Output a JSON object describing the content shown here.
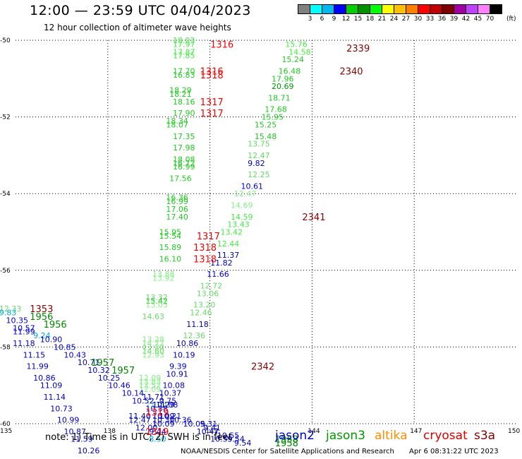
{
  "header": {
    "title": "12:00 — 23:59 UTC 04/04/2023",
    "subtitle": "12 hour collection of altimeter wave heights"
  },
  "legend": {
    "colors": [
      "#808080",
      "#00ffff",
      "#00b8f0",
      "#0000ff",
      "#00d000",
      "#009000",
      "#00ff00",
      "#ffff00",
      "#ffc000",
      "#ff8000",
      "#ff0000",
      "#c00000",
      "#800000",
      "#a000a0",
      "#c040ff",
      "#ff80ff",
      "#000000"
    ],
    "labels": [
      "3",
      "6",
      "9",
      "12",
      "15",
      "18",
      "21",
      "24",
      "27",
      "30",
      "33",
      "36",
      "39",
      "42",
      "45",
      "70"
    ],
    "unit": "(ft)"
  },
  "chart_data": {
    "type": "scatter",
    "title": "12:00 — 23:59 UTC 04/04/2023",
    "subtitle": "12 hour collection of altimeter wave heights",
    "xlim": [
      135,
      150
    ],
    "ylim": [
      -60,
      -50
    ],
    "x_ticks": [
      "135",
      "138",
      "141",
      "144",
      "147",
      "150"
    ],
    "y_ticks": [
      "-50",
      "-52",
      "-54",
      "-56",
      "-58",
      "-60"
    ],
    "grid": true,
    "swh_points": [
      {
        "lon": 140.2,
        "lat": -50.0,
        "text": "18.03",
        "color": "#44ee44"
      },
      {
        "lon": 140.2,
        "lat": -50.1,
        "text": "17.97",
        "color": "#44ee44"
      },
      {
        "lon": 140.2,
        "lat": -50.3,
        "text": "17.87",
        "color": "#44ee44"
      },
      {
        "lon": 140.2,
        "lat": -50.4,
        "text": "17.85",
        "color": "#44ee44"
      },
      {
        "lon": 140.2,
        "lat": -50.8,
        "text": "17.70",
        "color": "#22cc22"
      },
      {
        "lon": 140.2,
        "lat": -50.9,
        "text": "16.83",
        "color": "#22cc22"
      },
      {
        "lon": 140.1,
        "lat": -51.3,
        "text": "18.29",
        "color": "#22cc22"
      },
      {
        "lon": 140.1,
        "lat": -51.4,
        "text": "18.21",
        "color": "#22cc22"
      },
      {
        "lon": 140.2,
        "lat": -51.6,
        "text": "18.16",
        "color": "#22cc22"
      },
      {
        "lon": 140.2,
        "lat": -51.9,
        "text": "17.90",
        "color": "#22cc22"
      },
      {
        "lon": 140.0,
        "lat": -52.1,
        "text": "18.34",
        "color": "#22cc22"
      },
      {
        "lon": 140.0,
        "lat": -52.2,
        "text": "18.07",
        "color": "#22cc22"
      },
      {
        "lon": 140.2,
        "lat": -52.5,
        "text": "17.35",
        "color": "#22cc22"
      },
      {
        "lon": 140.2,
        "lat": -52.8,
        "text": "17.98",
        "color": "#22cc22"
      },
      {
        "lon": 140.2,
        "lat": -53.1,
        "text": "18.08",
        "color": "#22cc22"
      },
      {
        "lon": 140.2,
        "lat": -53.2,
        "text": "16.72",
        "color": "#22cc22"
      },
      {
        "lon": 140.2,
        "lat": -53.3,
        "text": "16.99",
        "color": "#22cc22"
      },
      {
        "lon": 140.1,
        "lat": -53.6,
        "text": "17.56",
        "color": "#22cc22"
      },
      {
        "lon": 140.0,
        "lat": -54.1,
        "text": "16.36",
        "color": "#22cc22"
      },
      {
        "lon": 140.0,
        "lat": -54.2,
        "text": "16.99",
        "color": "#22cc22"
      },
      {
        "lon": 140.0,
        "lat": -54.4,
        "text": "17.06",
        "color": "#22cc22"
      },
      {
        "lon": 140.0,
        "lat": -54.6,
        "text": "17.40",
        "color": "#22cc22"
      },
      {
        "lon": 139.8,
        "lat": -55.0,
        "text": "15.95",
        "color": "#22cc22"
      },
      {
        "lon": 139.8,
        "lat": -55.1,
        "text": "15.54",
        "color": "#22cc22"
      },
      {
        "lon": 139.8,
        "lat": -55.4,
        "text": "15.89",
        "color": "#22cc22"
      },
      {
        "lon": 139.8,
        "lat": -55.7,
        "text": "16.10",
        "color": "#22cc22"
      },
      {
        "lon": 139.6,
        "lat": -56.1,
        "text": "13.88",
        "color": "#88ee88"
      },
      {
        "lon": 139.6,
        "lat": -56.2,
        "text": "13.92",
        "color": "#88ee88"
      },
      {
        "lon": 139.4,
        "lat": -56.7,
        "text": "13.32",
        "color": "#66dd66"
      },
      {
        "lon": 139.4,
        "lat": -56.8,
        "text": "15.42",
        "color": "#22cc22"
      },
      {
        "lon": 139.4,
        "lat": -56.9,
        "text": "13.05",
        "color": "#88ee88"
      },
      {
        "lon": 139.3,
        "lat": -57.2,
        "text": "14.63",
        "color": "#66dd66"
      },
      {
        "lon": 139.3,
        "lat": -57.8,
        "text": "13.28",
        "color": "#88ee88"
      },
      {
        "lon": 139.3,
        "lat": -57.9,
        "text": "14.72",
        "color": "#88ee88"
      },
      {
        "lon": 139.3,
        "lat": -58.0,
        "text": "13.80",
        "color": "#88ee88"
      },
      {
        "lon": 139.3,
        "lat": -58.1,
        "text": "14.60",
        "color": "#66dd66"
      },
      {
        "lon": 139.3,
        "lat": -58.2,
        "text": "12.93",
        "color": "#88ee88"
      },
      {
        "lon": 139.2,
        "lat": -58.8,
        "text": "12.09",
        "color": "#88ee88"
      },
      {
        "lon": 139.2,
        "lat": -58.9,
        "text": "13.83",
        "color": "#88ee88"
      },
      {
        "lon": 139.2,
        "lat": -59.0,
        "text": "13.52",
        "color": "#88ee88"
      },
      {
        "lon": 139.2,
        "lat": -59.1,
        "text": "12.09",
        "color": "#88ee88"
      },
      {
        "lon": 139.4,
        "lat": -59.5,
        "text": "13.24",
        "color": "#88ee88"
      },
      {
        "lon": 139.3,
        "lat": -59.3,
        "text": "11.71",
        "color": "#0000cc"
      },
      {
        "lon": 139.8,
        "lat": -59.4,
        "text": "9.75",
        "color": "#0000cc"
      },
      {
        "lon": 139.6,
        "lat": -59.5,
        "text": "10.29",
        "color": "#0000cc"
      },
      {
        "lon": 138.9,
        "lat": -59.8,
        "text": "11.40",
        "color": "#0000cc"
      },
      {
        "lon": 138.9,
        "lat": -59.9,
        "text": "12.47",
        "color": "#0000cc"
      },
      {
        "lon": 139.1,
        "lat": -60.1,
        "text": "12.00",
        "color": "#0000cc"
      },
      {
        "lon": 139.6,
        "lat": -59.9,
        "text": "10.30",
        "color": "#0000cc"
      },
      {
        "lon": 139.6,
        "lat": -60.0,
        "text": "10.09",
        "color": "#0000cc"
      },
      {
        "lon": 139.5,
        "lat": -60.2,
        "text": "9.44",
        "color": "#0000cc"
      },
      {
        "lon": 139.5,
        "lat": -60.4,
        "text": "8.50",
        "color": "#00aadd"
      },
      {
        "lon": 141.0,
        "lat": -60.0,
        "text": "9.31",
        "color": "#0000cc"
      },
      {
        "lon": 141.1,
        "lat": -60.1,
        "text": "9.41",
        "color": "#0000cc"
      },
      {
        "lon": 141.5,
        "lat": -60.3,
        "text": "10.55",
        "color": "#0000cc"
      },
      {
        "lon": 141.8,
        "lat": -60.4,
        "text": "9.54",
        "color": "#0000cc"
      },
      {
        "lon": 142.0,
        "lat": -60.5,
        "text": "9.54",
        "color": "#0000cc"
      },
      {
        "lon": 143.5,
        "lat": -50.1,
        "text": "15.76",
        "color": "#44ee44"
      },
      {
        "lon": 143.6,
        "lat": -50.3,
        "text": "14.58",
        "color": "#44ee44"
      },
      {
        "lon": 143.4,
        "lat": -50.5,
        "text": "15.24",
        "color": "#22cc22"
      },
      {
        "lon": 143.3,
        "lat": -50.8,
        "text": "16.48",
        "color": "#22cc22"
      },
      {
        "lon": 143.1,
        "lat": -51.0,
        "text": "17.96",
        "color": "#22cc22"
      },
      {
        "lon": 143.1,
        "lat": -51.2,
        "text": "20.69",
        "color": "#009900"
      },
      {
        "lon": 143.0,
        "lat": -51.5,
        "text": "18.71",
        "color": "#22cc22"
      },
      {
        "lon": 142.9,
        "lat": -51.8,
        "text": "17.68",
        "color": "#22cc22"
      },
      {
        "lon": 142.8,
        "lat": -52.0,
        "text": "15.95",
        "color": "#22cc22"
      },
      {
        "lon": 142.6,
        "lat": -52.2,
        "text": "15.25",
        "color": "#22cc22"
      },
      {
        "lon": 142.6,
        "lat": -52.5,
        "text": "15.48",
        "color": "#22cc22"
      },
      {
        "lon": 142.4,
        "lat": -52.7,
        "text": "13.75",
        "color": "#66dd66"
      },
      {
        "lon": 142.4,
        "lat": -53.0,
        "text": "12.47",
        "color": "#66dd66"
      },
      {
        "lon": 142.4,
        "lat": -53.2,
        "text": "9.82",
        "color": "#0000cc"
      },
      {
        "lon": 142.4,
        "lat": -53.5,
        "text": "12.25",
        "color": "#66dd66"
      },
      {
        "lon": 142.2,
        "lat": -53.8,
        "text": "10.61",
        "color": "#0000cc"
      },
      {
        "lon": 142.0,
        "lat": -54.0,
        "text": "12.47",
        "color": "#88ee88"
      },
      {
        "lon": 141.9,
        "lat": -54.3,
        "text": "14.69",
        "color": "#88ee88"
      },
      {
        "lon": 141.9,
        "lat": -54.6,
        "text": "14.59",
        "color": "#44ee44"
      },
      {
        "lon": 141.8,
        "lat": -54.8,
        "text": "13.43",
        "color": "#44ee44"
      },
      {
        "lon": 141.6,
        "lat": -55.0,
        "text": "13.42",
        "color": "#44ee44"
      },
      {
        "lon": 141.5,
        "lat": -55.3,
        "text": "12.44",
        "color": "#44ee44"
      },
      {
        "lon": 141.5,
        "lat": -55.6,
        "text": "11.37",
        "color": "#0000cc"
      },
      {
        "lon": 141.3,
        "lat": -55.8,
        "text": "11.82",
        "color": "#0000cc"
      },
      {
        "lon": 141.2,
        "lat": -56.1,
        "text": "11.66",
        "color": "#0000cc"
      },
      {
        "lon": 141.0,
        "lat": -56.4,
        "text": "12.72",
        "color": "#66dd66"
      },
      {
        "lon": 140.9,
        "lat": -56.6,
        "text": "13.06",
        "color": "#66dd66"
      },
      {
        "lon": 140.8,
        "lat": -56.9,
        "text": "13.20",
        "color": "#66dd66"
      },
      {
        "lon": 140.7,
        "lat": -57.1,
        "text": "12.46",
        "color": "#66dd66"
      },
      {
        "lon": 140.6,
        "lat": -57.4,
        "text": "11.18",
        "color": "#0000cc"
      },
      {
        "lon": 140.5,
        "lat": -57.7,
        "text": "12.36",
        "color": "#66dd66"
      },
      {
        "lon": 140.3,
        "lat": -57.9,
        "text": "10.86",
        "color": "#0000cc"
      },
      {
        "lon": 140.2,
        "lat": -58.2,
        "text": "10.19",
        "color": "#0000cc"
      },
      {
        "lon": 140.1,
        "lat": -58.5,
        "text": "9.39",
        "color": "#0000cc"
      },
      {
        "lon": 140.0,
        "lat": -58.7,
        "text": "10.91",
        "color": "#0000cc"
      },
      {
        "lon": 139.9,
        "lat": -59.0,
        "text": "10.08",
        "color": "#0000cc"
      },
      {
        "lon": 139.8,
        "lat": -59.2,
        "text": "10.37",
        "color": "#0000cc"
      },
      {
        "lon": 139.7,
        "lat": -59.5,
        "text": "11.08",
        "color": "#0000cc"
      },
      {
        "lon": 139.6,
        "lat": -59.8,
        "text": "10.09",
        "color": "#0000cc"
      },
      {
        "lon": 135.1,
        "lat": -57.0,
        "text": "12.33",
        "color": "#66dd66"
      },
      {
        "lon": 135.1,
        "lat": -57.1,
        "text": "9.83",
        "color": "#00aadd"
      },
      {
        "lon": 135.3,
        "lat": -57.3,
        "text": "10.35",
        "color": "#0000cc"
      },
      {
        "lon": 135.5,
        "lat": -57.5,
        "text": "10.57",
        "color": "#0000cc"
      },
      {
        "lon": 135.5,
        "lat": -57.6,
        "text": "11.99",
        "color": "#0000cc"
      },
      {
        "lon": 136.1,
        "lat": -57.7,
        "text": "9.24",
        "color": "#00aadd"
      },
      {
        "lon": 135.5,
        "lat": -57.9,
        "text": "11.18",
        "color": "#0000cc"
      },
      {
        "lon": 135.8,
        "lat": -58.2,
        "text": "11.15",
        "color": "#0000cc"
      },
      {
        "lon": 135.9,
        "lat": -58.5,
        "text": "11.99",
        "color": "#0000cc"
      },
      {
        "lon": 136.1,
        "lat": -58.8,
        "text": "10.86",
        "color": "#0000cc"
      },
      {
        "lon": 136.3,
        "lat": -59.0,
        "text": "11.09",
        "color": "#0000cc"
      },
      {
        "lon": 136.4,
        "lat": -59.3,
        "text": "11.14",
        "color": "#0000cc"
      },
      {
        "lon": 136.6,
        "lat": -59.6,
        "text": "10.73",
        "color": "#0000cc"
      },
      {
        "lon": 136.8,
        "lat": -59.9,
        "text": "10.99",
        "color": "#0000cc"
      },
      {
        "lon": 137.0,
        "lat": -60.2,
        "text": "10.87",
        "color": "#0000cc"
      },
      {
        "lon": 137.2,
        "lat": -60.4,
        "text": "11.59",
        "color": "#0000cc"
      },
      {
        "lon": 137.4,
        "lat": -60.7,
        "text": "10.26",
        "color": "#0000cc"
      },
      {
        "lon": 136.3,
        "lat": -57.8,
        "text": "10.90",
        "color": "#0000cc"
      },
      {
        "lon": 136.7,
        "lat": -58.0,
        "text": "10.85",
        "color": "#0000cc"
      },
      {
        "lon": 137.0,
        "lat": -58.2,
        "text": "10.43",
        "color": "#0000cc"
      },
      {
        "lon": 137.4,
        "lat": -58.4,
        "text": "10.71",
        "color": "#0000cc"
      },
      {
        "lon": 137.7,
        "lat": -58.6,
        "text": "10.32",
        "color": "#0000cc"
      },
      {
        "lon": 138.0,
        "lat": -58.8,
        "text": "10.25",
        "color": "#0000cc"
      },
      {
        "lon": 138.3,
        "lat": -59.0,
        "text": "10.46",
        "color": "#0000cc"
      },
      {
        "lon": 138.7,
        "lat": -59.2,
        "text": "10.14",
        "color": "#0000cc"
      },
      {
        "lon": 139.0,
        "lat": -59.4,
        "text": "10.52",
        "color": "#0000cc"
      },
      {
        "lon": 139.4,
        "lat": -59.6,
        "text": "10.38",
        "color": "#0000cc"
      },
      {
        "lon": 139.8,
        "lat": -59.8,
        "text": "10.21",
        "color": "#0000cc"
      },
      {
        "lon": 140.1,
        "lat": -59.9,
        "text": "10.36",
        "color": "#0000cc"
      },
      {
        "lon": 140.5,
        "lat": -60.0,
        "text": "10.05",
        "color": "#0000cc"
      },
      {
        "lon": 140.9,
        "lat": -60.2,
        "text": "10.47",
        "color": "#0000cc"
      },
      {
        "lon": 141.3,
        "lat": -60.4,
        "text": "10.59",
        "color": "#0000cc"
      }
    ],
    "pass_labels": [
      {
        "lon": 141.3,
        "lat": -50.1,
        "text": "1316",
        "color": "#ff0000"
      },
      {
        "lon": 141.0,
        "lat": -50.8,
        "text": "1316",
        "color": "#ff0000"
      },
      {
        "lon": 141.0,
        "lat": -50.9,
        "text": "1318",
        "color": "#ff0000"
      },
      {
        "lon": 141.0,
        "lat": -51.6,
        "text": "1317",
        "color": "#ff0000"
      },
      {
        "lon": 141.0,
        "lat": -51.9,
        "text": "1317",
        "color": "#ff0000"
      },
      {
        "lon": 140.9,
        "lat": -55.1,
        "text": "1317",
        "color": "#ff0000"
      },
      {
        "lon": 140.8,
        "lat": -55.4,
        "text": "1318",
        "color": "#ff0000"
      },
      {
        "lon": 140.8,
        "lat": -55.7,
        "text": "1318",
        "color": "#ff0000"
      },
      {
        "lon": 139.4,
        "lat": -59.7,
        "text": "1319",
        "color": "#ff0000"
      },
      {
        "lon": 139.4,
        "lat": -60.2,
        "text": "1319",
        "color": "#ff0000"
      },
      {
        "lon": 145.3,
        "lat": -50.2,
        "text": "2339",
        "color": "#880000"
      },
      {
        "lon": 145.1,
        "lat": -50.8,
        "text": "2340",
        "color": "#880000"
      },
      {
        "lon": 144.0,
        "lat": -54.6,
        "text": "2341",
        "color": "#880000"
      },
      {
        "lon": 142.5,
        "lat": -58.5,
        "text": "2342",
        "color": "#880000"
      },
      {
        "lon": 136.0,
        "lat": -57.0,
        "text": "1353",
        "color": "#880000"
      },
      {
        "lon": 136.0,
        "lat": -57.2,
        "text": "1956",
        "color": "#008800"
      },
      {
        "lon": 136.4,
        "lat": -57.4,
        "text": "1956",
        "color": "#008800"
      },
      {
        "lon": 137.8,
        "lat": -58.4,
        "text": "1957",
        "color": "#008800"
      },
      {
        "lon": 138.4,
        "lat": -58.6,
        "text": "1957",
        "color": "#008800"
      },
      {
        "lon": 143.2,
        "lat": -60.4,
        "text": "1958",
        "color": "#008800"
      },
      {
        "lon": 143.2,
        "lat": -60.5,
        "text": "1958",
        "color": "#008800"
      }
    ]
  },
  "footer": {
    "note": "note:  1) Time is in UTC; 2) SWH is in feet",
    "satellites": [
      {
        "name": "jason2",
        "color": "#0000cc"
      },
      {
        "name": "jason3",
        "color": "#009900"
      },
      {
        "name": "altika",
        "color": "#ff8c00"
      },
      {
        "name": "cryosat",
        "color": "#dd0000"
      },
      {
        "name": "s3a",
        "color": "#880000"
      }
    ],
    "credit": "NOAA/NESDIS Center for Satellite Applications and Research",
    "generated": "Apr  6 08:31:22 UTC 2023"
  }
}
